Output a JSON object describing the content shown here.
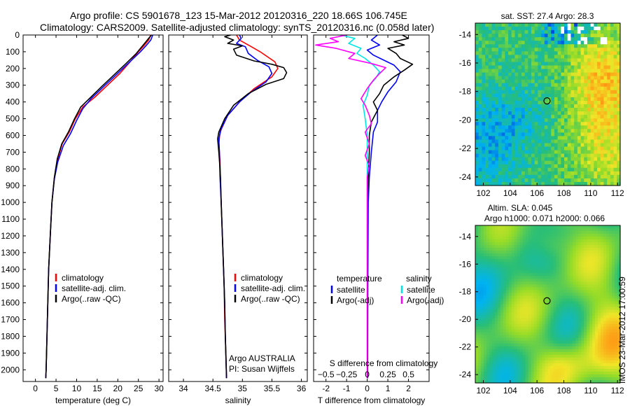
{
  "header": {
    "line1": "Argo profile: CS 5901678_123 15-Mar-2012 20120316_220 18.66S 106.745E",
    "line2": "Climatology: CARS2009. Satellite-adjusted climatology: synTS_20120316.nc (0.058d later)"
  },
  "sidebar_text": "IMOS 23-Mar-2012 17:00:59",
  "colors": {
    "red": "#ff0000",
    "blue": "#0000ff",
    "black": "#000000",
    "cyan": "#00e5e5",
    "magenta": "#ff00ff"
  },
  "chart_data": [
    {
      "type": "line",
      "id": "temperature",
      "xlabel": "temperature (deg C)",
      "ylabel": "",
      "xlim": [
        -3,
        31
      ],
      "ylim": [
        0,
        2070
      ],
      "y_reversed": true,
      "xticks": [
        0,
        5,
        10,
        15,
        20,
        25,
        30
      ],
      "yticks": [
        0,
        100,
        200,
        300,
        400,
        500,
        600,
        700,
        800,
        900,
        1000,
        1100,
        1200,
        1300,
        1400,
        1500,
        1600,
        1700,
        1800,
        1900,
        2000
      ],
      "legend": [
        "climatology",
        "satellite-adj. clim.",
        "Argo(..raw -QC)"
      ],
      "series": [
        {
          "name": "climatology",
          "color": "red",
          "points": [
            [
              28,
              0
            ],
            [
              27.5,
              30
            ],
            [
              26.5,
              60
            ],
            [
              25,
              100
            ],
            [
              23,
              160
            ],
            [
              20.5,
              230
            ],
            [
              17.5,
              300
            ],
            [
              14.5,
              370
            ],
            [
              11.5,
              430
            ],
            [
              9.7,
              500
            ],
            [
              8.2,
              580
            ],
            [
              6.5,
              650
            ],
            [
              5.3,
              750
            ],
            [
              4.6,
              850
            ],
            [
              4,
              1000
            ],
            [
              3.6,
              1200
            ],
            [
              3.2,
              1400
            ],
            [
              3,
              1600
            ],
            [
              2.8,
              1800
            ],
            [
              2.6,
              2000
            ],
            [
              2.5,
              2050
            ]
          ]
        },
        {
          "name": "satellite-adj. clim.",
          "color": "blue",
          "points": [
            [
              28.5,
              0
            ],
            [
              28,
              30
            ],
            [
              27,
              60
            ],
            [
              25.5,
              100
            ],
            [
              22.5,
              170
            ],
            [
              19.5,
              240
            ],
            [
              16.5,
              310
            ],
            [
              13.5,
              380
            ],
            [
              11.5,
              440
            ],
            [
              10,
              510
            ],
            [
              8.5,
              590
            ],
            [
              6.8,
              660
            ],
            [
              5.4,
              760
            ],
            [
              4.6,
              860
            ],
            [
              4,
              1000
            ],
            [
              3.6,
              1200
            ],
            [
              3.2,
              1400
            ],
            [
              3,
              1600
            ],
            [
              2.8,
              1800
            ],
            [
              2.6,
              2000
            ],
            [
              2.5,
              2050
            ]
          ]
        },
        {
          "name": "Argo(..raw -QC)",
          "color": "black",
          "points": [
            [
              28.2,
              0
            ],
            [
              28,
              5
            ],
            [
              27.5,
              20
            ],
            [
              26.5,
              50
            ],
            [
              25.5,
              80
            ],
            [
              24.5,
              110
            ],
            [
              22,
              170
            ],
            [
              19,
              240
            ],
            [
              16,
              310
            ],
            [
              13.5,
              370
            ],
            [
              11,
              430
            ],
            [
              9.5,
              500
            ],
            [
              8,
              580
            ],
            [
              6.4,
              650
            ],
            [
              5.3,
              740
            ],
            [
              4.6,
              850
            ],
            [
              4,
              1000
            ],
            [
              3.6,
              1200
            ],
            [
              3.2,
              1400
            ],
            [
              3,
              1600
            ],
            [
              2.8,
              1800
            ],
            [
              2.6,
              2000
            ],
            [
              2.5,
              2050
            ]
          ]
        }
      ]
    },
    {
      "type": "line",
      "id": "salinity",
      "xlabel": "salinity",
      "xlim": [
        33.75,
        36.1
      ],
      "ylim": [
        0,
        2070
      ],
      "y_reversed": true,
      "xticks": [
        34,
        34.5,
        35,
        35.5,
        36
      ],
      "legend": [
        "climatology",
        "satellite-adj. clim.",
        "Argo(..raw -QC)"
      ],
      "annotation": [
        "Argo AUSTRALIA",
        "PI: Susan Wijffels"
      ],
      "series": [
        {
          "name": "climatology",
          "color": "red",
          "points": [
            [
              34.9,
              0
            ],
            [
              34.95,
              30
            ],
            [
              35.15,
              70
            ],
            [
              35.3,
              100
            ],
            [
              35.55,
              160
            ],
            [
              35.6,
              200
            ],
            [
              35.5,
              250
            ],
            [
              35.2,
              320
            ],
            [
              34.95,
              400
            ],
            [
              34.75,
              480
            ],
            [
              34.62,
              580
            ],
            [
              34.6,
              650
            ],
            [
              34.62,
              750
            ],
            [
              34.63,
              900
            ],
            [
              34.65,
              1100
            ],
            [
              34.67,
              1300
            ],
            [
              34.69,
              1500
            ],
            [
              34.7,
              1700
            ],
            [
              34.72,
              1900
            ],
            [
              34.73,
              2050
            ]
          ]
        },
        {
          "name": "satellite-adj. clim.",
          "color": "blue",
          "points": [
            [
              34.95,
              0
            ],
            [
              34.98,
              20
            ],
            [
              34.9,
              50
            ],
            [
              35.05,
              70
            ],
            [
              35.1,
              110
            ],
            [
              35.25,
              150
            ],
            [
              35.45,
              190
            ],
            [
              35.5,
              230
            ],
            [
              35.4,
              280
            ],
            [
              35.15,
              340
            ],
            [
              34.95,
              400
            ],
            [
              34.75,
              480
            ],
            [
              34.64,
              560
            ],
            [
              34.6,
              620
            ],
            [
              34.61,
              700
            ],
            [
              34.62,
              850
            ],
            [
              34.64,
              1000
            ],
            [
              34.66,
              1200
            ],
            [
              34.68,
              1400
            ],
            [
              34.7,
              1600
            ],
            [
              34.71,
              1800
            ],
            [
              34.73,
              2050
            ]
          ]
        },
        {
          "name": "Argo(..raw -QC)",
          "color": "black",
          "points": [
            [
              34.8,
              0
            ],
            [
              34.7,
              10
            ],
            [
              34.85,
              30
            ],
            [
              34.75,
              50
            ],
            [
              35.0,
              65
            ],
            [
              34.85,
              85
            ],
            [
              34.9,
              120
            ],
            [
              35.2,
              155
            ],
            [
              35.5,
              175
            ],
            [
              35.7,
              195
            ],
            [
              35.75,
              225
            ],
            [
              35.7,
              260
            ],
            [
              35.4,
              295
            ],
            [
              35.1,
              350
            ],
            [
              34.85,
              420
            ],
            [
              34.7,
              500
            ],
            [
              34.6,
              580
            ],
            [
              34.58,
              620
            ],
            [
              34.6,
              700
            ],
            [
              34.62,
              800
            ],
            [
              34.63,
              860
            ],
            [
              34.64,
              1000
            ],
            [
              34.66,
              1200
            ],
            [
              34.68,
              1400
            ],
            [
              34.7,
              1600
            ],
            [
              34.71,
              1800
            ],
            [
              34.73,
              2050
            ]
          ]
        }
      ]
    },
    {
      "type": "line",
      "id": "difference",
      "xlabel": "T difference from climatology",
      "xlabel_top": "S difference from climatology",
      "xlim": [
        -2.6,
        3.0
      ],
      "ylim": [
        0,
        2070
      ],
      "y_reversed": true,
      "xticks": [
        -2,
        -1,
        0,
        1,
        2
      ],
      "xticks_top": [
        {
          "pos": -2,
          "label": "−0.5"
        },
        {
          "pos": -1,
          "label": "−0.25"
        },
        {
          "pos": 0,
          "label": "0"
        },
        {
          "pos": 1,
          "label": "0.25"
        },
        {
          "pos": 2,
          "label": "0.5"
        }
      ],
      "legend_left_title": "temperature",
      "legend_right_title": "salinity",
      "legend_left": [
        "satellite",
        "Argo(-adj)"
      ],
      "legend_right": [
        "satellite",
        "Argo(-adj)"
      ],
      "series": [
        {
          "name": "temperature satellite",
          "color": "blue",
          "points": [
            [
              0.5,
              0
            ],
            [
              0.2,
              30
            ],
            [
              0.6,
              60
            ],
            [
              0,
              90
            ],
            [
              0.3,
              120
            ],
            [
              0.8,
              150
            ],
            [
              1.3,
              180
            ],
            [
              1.6,
              220
            ],
            [
              1.4,
              280
            ],
            [
              1.0,
              340
            ],
            [
              0.7,
              400
            ],
            [
              0.5,
              450
            ],
            [
              0.5,
              520
            ],
            [
              0.3,
              580
            ],
            [
              0.2,
              700
            ],
            [
              0.1,
              850
            ],
            [
              0.05,
              1000
            ],
            [
              0.03,
              1500
            ],
            [
              0.02,
              2050
            ]
          ]
        },
        {
          "name": "temperature Argo(-adj)",
          "color": "black",
          "points": [
            [
              1.7,
              0
            ],
            [
              2.0,
              20
            ],
            [
              1.3,
              40
            ],
            [
              1.8,
              60
            ],
            [
              1.0,
              80
            ],
            [
              1.4,
              110
            ],
            [
              1.6,
              140
            ],
            [
              2.2,
              175
            ],
            [
              1.8,
              210
            ],
            [
              1.3,
              250
            ],
            [
              0.8,
              300
            ],
            [
              0.6,
              350
            ],
            [
              0.3,
              400
            ],
            [
              0.5,
              450
            ],
            [
              0.2,
              520
            ],
            [
              0.1,
              600
            ],
            [
              0.1,
              700
            ],
            [
              0.05,
              850
            ],
            [
              0.02,
              1000
            ],
            [
              0.02,
              2050
            ]
          ]
        },
        {
          "name": "salinity satellite",
          "color": "cyan",
          "points": [
            [
              -1.3,
              0
            ],
            [
              -0.6,
              20
            ],
            [
              -0.9,
              50
            ],
            [
              -0.3,
              80
            ],
            [
              -0.5,
              110
            ],
            [
              -0.1,
              140
            ],
            [
              0.3,
              180
            ],
            [
              0.6,
              220
            ],
            [
              0.4,
              260
            ],
            [
              0.1,
              300
            ],
            [
              0,
              360
            ],
            [
              -0.2,
              420
            ],
            [
              -0.1,
              500
            ],
            [
              0,
              600
            ],
            [
              0,
              700
            ],
            [
              0,
              850
            ],
            [
              0,
              1000
            ],
            [
              0,
              1500
            ],
            [
              0,
              2050
            ]
          ]
        },
        {
          "name": "salinity Argo(-adj)",
          "color": "magenta",
          "points": [
            [
              -1.0,
              0
            ],
            [
              -1.8,
              20
            ],
            [
              -1.4,
              40
            ],
            [
              -2.5,
              60
            ],
            [
              -1.5,
              80
            ],
            [
              -0.6,
              110
            ],
            [
              -0.9,
              140
            ],
            [
              0.2,
              170
            ],
            [
              0.9,
              195
            ],
            [
              0.6,
              230
            ],
            [
              0.3,
              270
            ],
            [
              0,
              320
            ],
            [
              -0.3,
              380
            ],
            [
              -0.1,
              420
            ],
            [
              0.1,
              480
            ],
            [
              0.2,
              530
            ],
            [
              -0.1,
              580
            ],
            [
              0.1,
              650
            ],
            [
              -0.1,
              720
            ],
            [
              0.1,
              780
            ],
            [
              0,
              850
            ],
            [
              0,
              1000
            ],
            [
              0,
              2050
            ]
          ]
        }
      ]
    },
    {
      "type": "heatmap",
      "id": "sst-map",
      "title": "sat. SST: 27.4  Argo: 28.3",
      "xlim": [
        101.4,
        112.2
      ],
      "ylim": [
        -24.6,
        -13.2
      ],
      "xticks": [
        102,
        104,
        106,
        108,
        110,
        112
      ],
      "yticks": [
        -14,
        -16,
        -18,
        -20,
        -22,
        -24
      ],
      "marker": {
        "lon": 106.745,
        "lat": -18.66
      }
    },
    {
      "type": "heatmap",
      "id": "sla-map",
      "title_line1": "Altim. SLA: 0.045",
      "title_line2": "Argo h1000: 0.071 h2000: 0.066",
      "xlim": [
        101.4,
        112.2
      ],
      "ylim": [
        -24.6,
        -13.2
      ],
      "xticks": [
        102,
        104,
        106,
        108,
        110,
        112
      ],
      "yticks": [
        -14,
        -16,
        -18,
        -20,
        -22,
        -24
      ],
      "marker": {
        "lon": 106.745,
        "lat": -18.66
      }
    }
  ]
}
